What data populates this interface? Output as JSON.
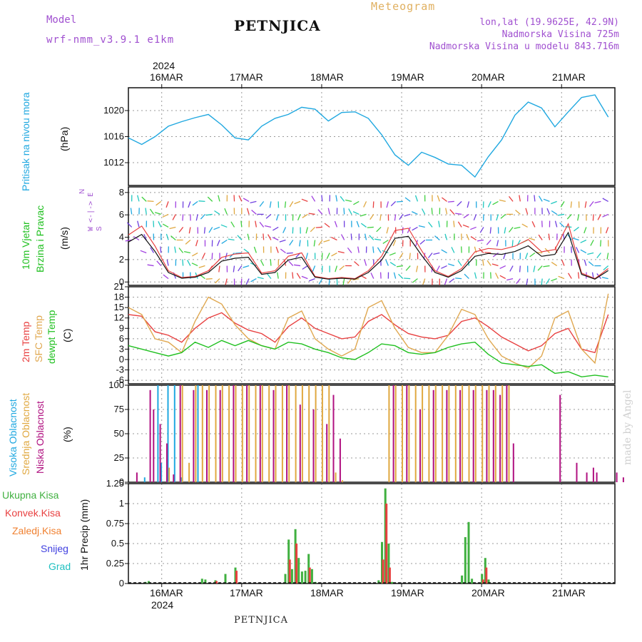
{
  "header": {
    "model_label": "Model",
    "model_name": "wrf-nmm_v3.9.1 e1km",
    "station": "PETNJICA",
    "meteogram": "Meteogram",
    "coords": "lon,lat (19.9625E, 42.9N)",
    "altitude": "Nadmorska Visina 725m",
    "model_altitude": "Nadmorska Visina u modelu 843.716m"
  },
  "dates": {
    "year": "2024",
    "days": [
      "16MAR",
      "17MAR",
      "18MAR",
      "19MAR",
      "20MAR",
      "21MAR"
    ]
  },
  "footer": {
    "station": "PETNJICA",
    "credit": "made by Angel"
  },
  "labels": {
    "pressure": "Pritisak na nivou mora",
    "pressure_unit": "(hPa)",
    "wind1": "10m Vjetar",
    "wind2": "Brzina i Pravac",
    "wind_unit": "(m/s)",
    "compass1": "N",
    "compass2": "W <-|-> E",
    "compass3": "S",
    "temp2m": "2m Temp",
    "tempsfc": "SFC Temp",
    "tempdew": "dewpt Temp",
    "temp_unit": "(C)",
    "cloud_high": "Visoka Oblacnost",
    "cloud_mid": "Srednja Oblacnost",
    "cloud_low": "Niska Oblacnost",
    "cloud_unit": "(%)",
    "precip_axis": "1hr Precip (mm)",
    "legend_total": "Ukupna Kisa",
    "legend_conv": "Konvek.Kisa",
    "legend_frz": "Zaledj.Kisa",
    "legend_snow": "Snijeg",
    "legend_grad": "Grad"
  },
  "colors": {
    "pressure": "#20a8e0",
    "temp2m": "#e84040",
    "tempsfc": "#e0a850",
    "dewpt": "#20c020",
    "cloud_high": "#20a8e0",
    "cloud_mid": "#e0a840",
    "cloud_low": "#b01080",
    "precip_total": "#40b040",
    "precip_conv": "#e84040",
    "precip_frz": "#f08030",
    "precip_snow": "#4040e0",
    "precip_grad": "#20c0c0",
    "header_purple": "#a050d0"
  },
  "chart_data": [
    {
      "type": "line",
      "name": "Pritisak na nivou mora",
      "x_unit": "hours from 16MAR 00",
      "ylim": [
        1008.5,
        1023.5
      ],
      "yticks": [
        1012,
        1016,
        1020
      ],
      "x": [
        -10,
        -6,
        -2,
        2,
        6,
        10,
        14,
        18,
        22,
        26,
        30,
        34,
        38,
        42,
        46,
        50,
        54,
        58,
        62,
        66,
        70,
        74,
        78,
        82,
        86,
        90,
        94,
        98,
        102,
        106,
        110,
        114,
        118,
        122,
        126,
        130,
        134
      ],
      "values": [
        1015.8,
        1014.8,
        1016.0,
        1017.6,
        1018.3,
        1018.9,
        1019.4,
        1017.8,
        1015.8,
        1015.5,
        1017.6,
        1018.8,
        1019.4,
        1020.5,
        1020.2,
        1018.4,
        1019.7,
        1019.8,
        1018.8,
        1016.3,
        1013.2,
        1011.6,
        1013.6,
        1012.8,
        1011.8,
        1011.6,
        1009.8,
        1012.9,
        1015.5,
        1019.3,
        1021.3,
        1020.4,
        1017.5,
        1019.8,
        1022.0,
        1022.4,
        1019.0
      ]
    },
    {
      "type": "line",
      "name": "10m Vjetar",
      "x_unit": "hours from 16MAR 00",
      "ylim": [
        -0.3,
        8.5
      ],
      "yticks": [
        0,
        2,
        4,
        6,
        8
      ],
      "x": [
        -10,
        -6,
        -2,
        2,
        6,
        10,
        14,
        18,
        22,
        26,
        30,
        34,
        38,
        42,
        46,
        50,
        54,
        58,
        62,
        66,
        70,
        74,
        78,
        82,
        86,
        90,
        94,
        98,
        102,
        106,
        110,
        114,
        118,
        122,
        126,
        130,
        134
      ],
      "values": [
        4.2,
        5.0,
        3.2,
        1.0,
        0.4,
        0.5,
        1.0,
        2.2,
        2.5,
        2.6,
        0.8,
        1.0,
        2.3,
        2.6,
        0.5,
        0.3,
        0.4,
        0.3,
        1.0,
        2.3,
        4.6,
        4.8,
        2.8,
        1.0,
        0.5,
        1.2,
        2.7,
        3.0,
        2.9,
        3.2,
        3.8,
        2.7,
        2.9,
        5.2,
        0.8,
        0.3,
        1.2
      ]
    },
    {
      "type": "line",
      "x_unit": "hours from 16MAR 00",
      "ylim": [
        -7,
        21
      ],
      "yticks": [
        -6,
        -3,
        0,
        3,
        6,
        9,
        12,
        15,
        18,
        21
      ],
      "x": [
        -10,
        -6,
        -2,
        2,
        6,
        10,
        14,
        18,
        22,
        26,
        30,
        34,
        38,
        42,
        46,
        50,
        54,
        58,
        62,
        66,
        70,
        74,
        78,
        82,
        86,
        90,
        94,
        98,
        102,
        106,
        110,
        114,
        118,
        122,
        126,
        130,
        134
      ],
      "series": [
        {
          "name": "2m Temp",
          "values": [
            13.0,
            12.5,
            8.0,
            7.0,
            5.0,
            9.0,
            12.0,
            13.5,
            10.5,
            8.5,
            7.5,
            5.0,
            9.5,
            12.0,
            9.0,
            7.5,
            6.0,
            6.5,
            11.0,
            13.0,
            10.0,
            7.5,
            6.5,
            6.0,
            7.0,
            11.0,
            12.0,
            9.5,
            6.5,
            4.5,
            2.5,
            4.0,
            7.5,
            9.0,
            3.0,
            2.0,
            13.0
          ]
        },
        {
          "name": "SFC Temp",
          "values": [
            15.0,
            13.0,
            6.0,
            5.0,
            2.0,
            11.0,
            18.0,
            16.0,
            10.0,
            6.0,
            4.0,
            3.0,
            12.0,
            14.0,
            6.0,
            3.0,
            1.0,
            3.0,
            15.0,
            17.0,
            9.0,
            3.5,
            2.0,
            2.0,
            7.0,
            14.5,
            13.0,
            6.0,
            1.0,
            -1.0,
            -2.5,
            1.0,
            12.0,
            14.0,
            3.0,
            -1.0,
            19.0
          ]
        },
        {
          "name": "dewpt Temp",
          "values": [
            4.0,
            3.0,
            2.0,
            1.0,
            2.0,
            5.0,
            3.5,
            5.5,
            4.0,
            5.5,
            4.0,
            3.0,
            5.0,
            4.5,
            3.0,
            2.0,
            0.5,
            0.0,
            2.0,
            4.5,
            4.0,
            2.0,
            1.5,
            2.0,
            3.5,
            4.5,
            5.0,
            1.5,
            -1.0,
            -1.5,
            -2.0,
            -1.5,
            -4.0,
            -3.5,
            -5.0,
            -4.5,
            -5.0
          ]
        }
      ]
    },
    {
      "type": "bar",
      "x_unit": "hours from 16MAR 00",
      "ylim": [
        0,
        100
      ],
      "yticks": [
        0,
        25,
        50,
        75,
        100
      ],
      "series": [
        {
          "name": "Visoka Oblacnost",
          "x": [
            -5,
            -1,
            0,
            2,
            4,
            6,
            11
          ],
          "values": [
            5,
            100,
            20,
            100,
            100,
            5,
            100
          ]
        },
        {
          "name": "Srednja Oblacnost",
          "x": [
            2,
            6,
            8,
            10,
            12,
            14,
            16,
            18,
            20,
            22,
            24,
            26,
            28,
            30,
            32,
            34,
            36,
            38,
            40,
            42,
            44,
            46,
            48,
            50,
            52,
            54,
            68,
            70,
            72,
            74,
            76,
            78,
            80,
            82,
            84,
            86,
            88,
            90,
            92,
            94,
            96,
            98,
            100,
            102,
            104
          ],
          "values": [
            15,
            100,
            20,
            100,
            100,
            100,
            100,
            100,
            100,
            100,
            100,
            100,
            100,
            100,
            100,
            100,
            100,
            100,
            100,
            100,
            100,
            100,
            100,
            100,
            10,
            2,
            100,
            100,
            100,
            100,
            100,
            100,
            100,
            100,
            100,
            100,
            100,
            100,
            100,
            100,
            100,
            100,
            100,
            100,
            100
          ]
        },
        {
          "name": "Niska Oblacnost",
          "x": [
            -8,
            -4,
            -3,
            -1,
            1,
            3,
            5,
            9,
            13,
            17,
            21,
            25,
            29,
            33,
            37,
            41,
            45,
            49,
            51,
            53,
            69,
            73,
            77,
            81,
            85,
            89,
            93,
            97,
            99,
            101,
            103,
            105,
            119,
            124,
            127,
            129,
            130,
            136,
            138
          ],
          "values": [
            10,
            95,
            75,
            60,
            40,
            8,
            100,
            95,
            95,
            95,
            100,
            100,
            100,
            95,
            100,
            80,
            75,
            60,
            90,
            45,
            100,
            100,
            75,
            95,
            95,
            95,
            95,
            95,
            95,
            90,
            100,
            40,
            90,
            20,
            10,
            15,
            10,
            10,
            5
          ]
        }
      ]
    },
    {
      "type": "bar",
      "x_unit": "hours from 16MAR 00",
      "ylim": [
        0,
        1.25
      ],
      "yticks": [
        0,
        0.25,
        0.5,
        0.75,
        1,
        1.25
      ],
      "series": [
        {
          "name": "Ukupna Kisa",
          "x": [
            -5,
            -4,
            12,
            13,
            16,
            19,
            22,
            37,
            38,
            39,
            40,
            41,
            42,
            43,
            44,
            45,
            46,
            65,
            66,
            67,
            68,
            69,
            90,
            91,
            92,
            93,
            96,
            97,
            98
          ],
          "values": [
            0.02,
            0.03,
            0.06,
            0.05,
            0.04,
            0.12,
            0.2,
            0.12,
            0.55,
            0.18,
            0.68,
            0.32,
            0.15,
            0.16,
            0.37,
            0.18,
            0.02,
            0.04,
            0.52,
            1.19,
            0.5,
            0.02,
            0.1,
            0.58,
            0.77,
            0.06,
            0.12,
            0.32,
            0.05
          ]
        },
        {
          "name": "Konvek.Kisa",
          "x": [
            16,
            22,
            38,
            40,
            44,
            66,
            67,
            68,
            96,
            97
          ],
          "values": [
            0.03,
            0.16,
            0.3,
            0.5,
            0.2,
            0.3,
            1.0,
            0.2,
            0.05,
            0.2
          ]
        }
      ]
    }
  ]
}
